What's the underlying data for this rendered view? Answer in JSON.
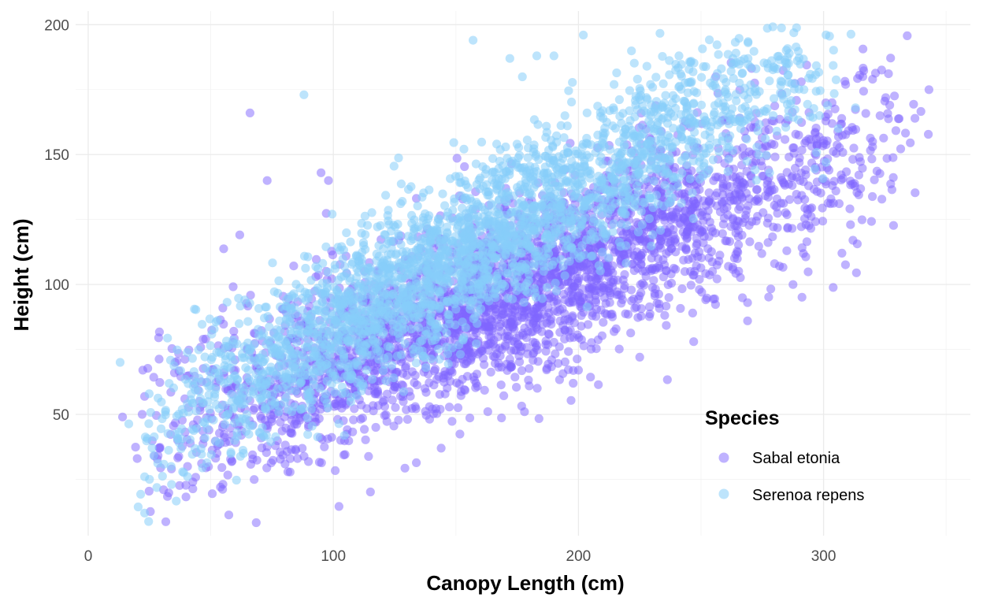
{
  "chart_data": {
    "type": "scatter",
    "title": "",
    "xlabel": "Canopy Length (cm)",
    "ylabel": "Height (cm)",
    "xlim": [
      0,
      360
    ],
    "ylim": [
      5,
      205
    ],
    "x_ticks": [
      0,
      100,
      200,
      300
    ],
    "y_ticks": [
      50,
      100,
      150,
      200
    ],
    "grid": true,
    "legend": {
      "title": "Species",
      "position": "bottom-right-inside"
    },
    "series": [
      {
        "name": "Sabal etonia",
        "color": "#7f66ff",
        "opacity": 0.5,
        "n_points": 3200,
        "distribution": {
          "x_min": 15,
          "x_max": 345,
          "x_mode": 160,
          "slope": 0.38,
          "intercept": 32,
          "noise_sd": 17
        },
        "points": [
          [
            14,
            49
          ],
          [
            22,
            50
          ],
          [
            20,
            33
          ],
          [
            27,
            34
          ],
          [
            66,
            166
          ],
          [
            73,
            140
          ],
          [
            95,
            143
          ],
          [
            98,
            140
          ],
          [
            144,
            37
          ],
          [
            178,
            51
          ],
          [
            200,
            67
          ],
          [
            225,
            72
          ],
          [
            247,
            78
          ],
          [
            269,
            86
          ],
          [
            269,
            93
          ],
          [
            280,
            108
          ],
          [
            303,
            133
          ],
          [
            305,
            136
          ],
          [
            312,
            117
          ],
          [
            311,
            123
          ],
          [
            320,
            155
          ],
          [
            320,
            153
          ],
          [
            327,
            169
          ],
          [
            343,
            175
          ],
          [
            320,
            179
          ],
          [
            309,
            177
          ],
          [
            316,
            180
          ],
          [
            294,
            156
          ],
          [
            297,
            156
          ],
          [
            256,
            180
          ]
        ]
      },
      {
        "name": "Serenoa repens",
        "color": "#87cefa",
        "opacity": 0.55,
        "n_points": 2700,
        "distribution": {
          "x_min": 13,
          "x_max": 320,
          "x_mode": 140,
          "slope": 0.53,
          "intercept": 31,
          "noise_sd": 15
        },
        "points": [
          [
            13,
            70
          ],
          [
            23,
            12
          ],
          [
            23,
            26
          ],
          [
            25,
            25
          ],
          [
            34,
            23
          ],
          [
            88,
            173
          ],
          [
            157,
            194
          ],
          [
            202,
            196
          ],
          [
            172,
            187
          ],
          [
            183,
            188
          ],
          [
            190,
            188
          ],
          [
            241,
            188
          ],
          [
            263,
            187
          ],
          [
            281,
            183
          ],
          [
            285,
            185
          ],
          [
            292,
            175
          ],
          [
            306,
            160
          ],
          [
            313,
            168
          ],
          [
            301,
            147
          ],
          [
            278,
            143
          ],
          [
            270,
            174
          ],
          [
            260,
            167
          ]
        ]
      }
    ]
  }
}
